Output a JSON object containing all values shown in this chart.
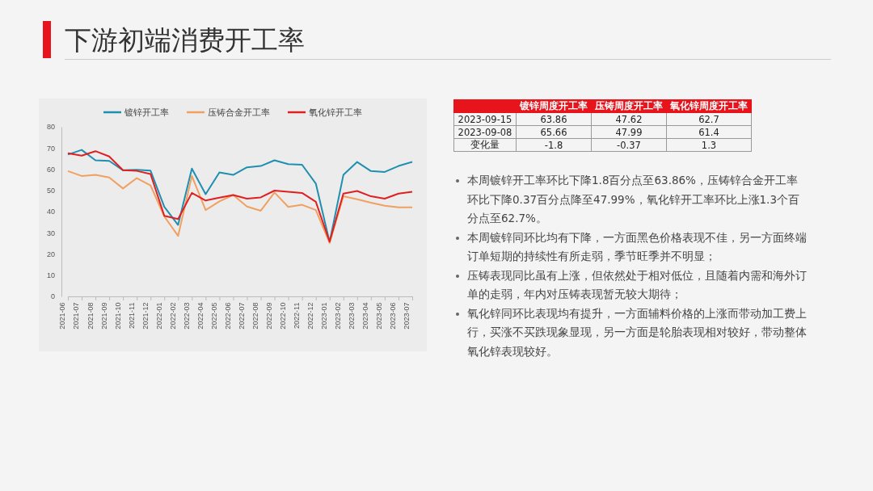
{
  "chart_data": [
    {
      "type": "line",
      "title": "下游初端消费开工率",
      "categories": [
        "2021-06",
        "2021-07",
        "2021-08",
        "2021-09",
        "2021-10",
        "2021-11",
        "2021-12",
        "2022-01",
        "2022-02",
        "2022-03",
        "2022-04",
        "2022-05",
        "2022-06",
        "2022-07",
        "2022-08",
        "2022-09",
        "2022-10",
        "2022-11",
        "2022-12",
        "2023-01",
        "2023-02",
        "2023-03",
        "2023-04",
        "2023-05",
        "2023-06",
        "2023-07"
      ],
      "series": [
        {
          "name": "镀锌开工率",
          "color": "#1f8fb0",
          "values": [
            66.9,
            69.1,
            64.2,
            63.9,
            59.5,
            59.7,
            59.3,
            42.2,
            33.7,
            60.3,
            48.2,
            58.5,
            57.3,
            60.9,
            61.5,
            64.2,
            62.4,
            62.1,
            53.2,
            25.6,
            57.3,
            63.4,
            59.1,
            58.7,
            61.5,
            63.4
          ]
        },
        {
          "name": "压铸合金开工率",
          "color": "#f0a060",
          "values": [
            59.1,
            56.8,
            57.3,
            56.1,
            50.9,
            55.8,
            52.3,
            37.7,
            28.5,
            56.8,
            40.7,
            44.8,
            47.8,
            42.4,
            40.4,
            49.0,
            42.2,
            43.2,
            40.7,
            25.2,
            47.2,
            45.8,
            44.2,
            42.8,
            42.0,
            42.0
          ]
        },
        {
          "name": "氧化锌开工率",
          "color": "#e02020",
          "values": [
            67.5,
            66.4,
            68.5,
            66.0,
            59.5,
            59.2,
            57.7,
            38.0,
            36.5,
            48.8,
            45.2,
            46.6,
            47.8,
            46.1,
            46.7,
            49.9,
            49.3,
            48.8,
            44.6,
            25.8,
            48.5,
            49.7,
            47.2,
            46.1,
            48.5,
            49.3
          ]
        }
      ],
      "ylim": [
        0,
        80
      ],
      "yticks": [
        0,
        10,
        20,
        30,
        40,
        50,
        60,
        70,
        80
      ],
      "grid": false,
      "legend": "top"
    },
    {
      "type": "other",
      "annotations": [
        "镀锌周度开工率",
        "压铸周度开工率",
        "氧化锌周度开工率",
        "2023-09-15",
        "63.86",
        "47.62",
        "62.7",
        "2023-09-08",
        "65.66",
        "47.99",
        "61.4",
        "变化量",
        "-1.8",
        "-0.37",
        "1.3"
      ]
    },
    {
      "type": "other",
      "annotations": [
        "本周镀锌开工率环比下降1.8百分点至63.86%，压铸锌合金开工率环比下降0.37百分点降至47.99%，氧化锌开工率环比上涨1.3个百分点至62.7%。",
        "本周镀锌同环比均有下降，一方面黑色价格表现不佳，另一方面终端订单短期的持续性有所走弱，季节旺季并不明显；",
        "压铸表现同比虽有上涨，但依然处于相对低位，且随着内需和海外订单的走弱，年内对压铸表现暂无较大期待；",
        "氧化锌同环比表现均有提升，一方面辅料价格的上涨而带动加工费上行，买涨不买跌现象显现，另一方面是轮胎表现相对较好，带动整体氧化锌表现较好。"
      ]
    }
  ]
}
